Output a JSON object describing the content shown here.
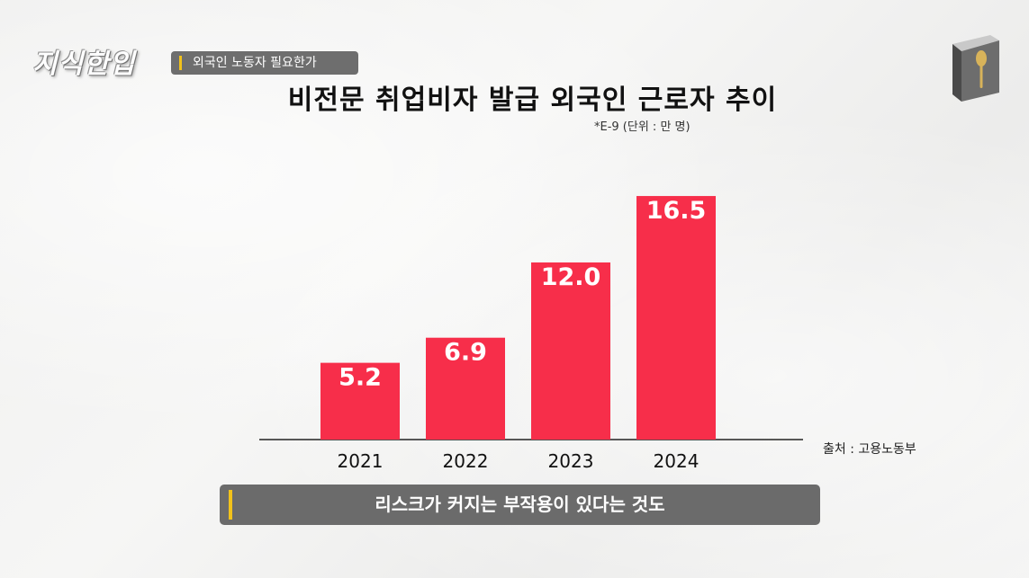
{
  "header": {
    "channel_logo": "지식한입",
    "topic_tag": "외국인 노동자 필요한가"
  },
  "chart_data": {
    "type": "bar",
    "title": "비전문 취업비자 발급 외국인 근로자 추이",
    "unit_note": "*E-9 (단위 : 만 명)",
    "source": "출처 : 고용노동부",
    "categories": [
      "2021",
      "2022",
      "2023",
      "2024"
    ],
    "values": [
      5.2,
      6.9,
      12.0,
      16.5
    ],
    "value_labels": [
      "5.2",
      "6.9",
      "12.0",
      "16.5"
    ],
    "ylim": [
      0,
      17.6
    ],
    "bar_color": "#f72e4a",
    "label_color": "#ffffff",
    "grid": false
  },
  "caption": {
    "text": "리스크가 커지는 부작용이 있다는 것도",
    "accent_color": "#f2c21b"
  },
  "icons": {
    "brand_icon": "book-spoon-icon"
  }
}
